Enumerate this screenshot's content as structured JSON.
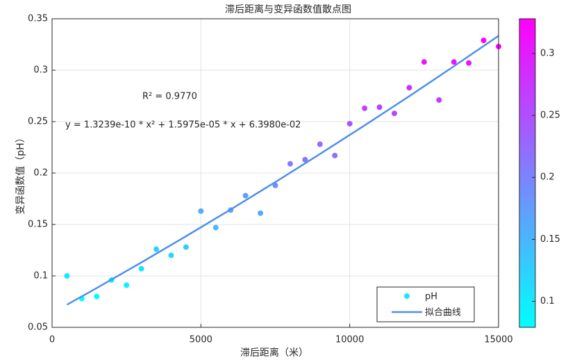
{
  "chart_data": {
    "type": "scatter",
    "title": "滞后距离与变异函数值散点图",
    "x_label": "滞后距离（米）",
    "y_label": "变异函数值（pH）",
    "annotations": [
      "R² = 0.9770",
      "y = 1.3239e-10 * x² + 1.5975e-05 * x + 6.3980e-02"
    ],
    "xlim": [
      0,
      15000
    ],
    "xticks": [
      0,
      5000,
      10000,
      15000
    ],
    "ylim": [
      0.05,
      0.35
    ],
    "yticks": [
      0.05,
      0.1,
      0.15,
      0.2,
      0.25,
      0.3,
      0.35
    ],
    "grid": true,
    "legend": "southeast",
    "colormap": "cool",
    "clim": [
      0.079,
      0.328
    ],
    "cticks": [
      0.1,
      0.15,
      0.2,
      0.25,
      0.3
    ],
    "series": [
      {
        "name": "pH",
        "color": "#1ae5ff",
        "x": [
          500,
          1000,
          1500,
          2000,
          2500,
          3000,
          3500,
          4000,
          4500,
          5000,
          5500,
          6000,
          6500,
          7000,
          7500,
          8000,
          8500,
          9000,
          9500,
          10000,
          10500,
          11000,
          11500,
          12000,
          12500,
          13000,
          13500,
          14000,
          14500,
          15000
        ],
        "values": [
          0.1,
          0.078,
          0.08,
          0.096,
          0.091,
          0.107,
          0.126,
          0.12,
          0.128,
          0.163,
          0.147,
          0.164,
          0.178,
          0.161,
          0.188,
          0.209,
          0.213,
          0.228,
          0.217,
          0.248,
          0.263,
          0.264,
          0.258,
          0.283,
          0.308,
          0.271,
          0.308,
          0.307,
          0.329,
          0.323
        ]
      },
      {
        "name": "拟合曲线",
        "color": "#4d90ec",
        "x": [
          500,
          1500,
          3000,
          4500,
          6000,
          7500,
          9000,
          10500,
          12000,
          13500,
          15000
        ],
        "values": [
          0.072,
          0.0882,
          0.1131,
          0.1386,
          0.1646,
          0.1912,
          0.2185,
          0.2463,
          0.2747,
          0.3038,
          0.3334
        ]
      }
    ]
  }
}
